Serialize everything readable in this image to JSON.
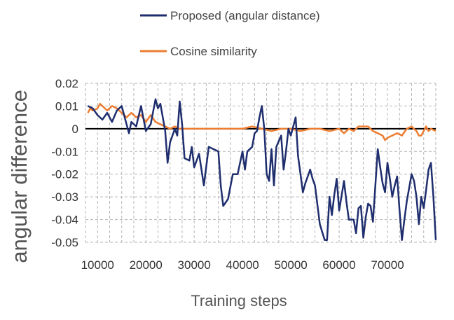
{
  "chart_data": {
    "type": "line",
    "xlabel": "Training steps",
    "ylabel": "angular difference",
    "xlim": [
      7500,
      80000
    ],
    "ylim": [
      -0.05,
      0.02
    ],
    "x_ticks": [
      10000,
      20000,
      30000,
      40000,
      50000,
      60000,
      70000
    ],
    "x_tick_labels": [
      "10000",
      "20000",
      "30000",
      "40000",
      "50000",
      "60000",
      "70000"
    ],
    "y_ticks": [
      0.02,
      0.01,
      0,
      -0.01,
      -0.02,
      -0.03,
      -0.04,
      -0.05
    ],
    "y_tick_labels": [
      "0.02",
      "0.01",
      "0",
      "-0.01",
      "-0.02",
      "-0.03",
      "-0.04",
      "-0.05"
    ],
    "grid": "dashed, both axes",
    "zero_line": true,
    "legend_position": "top-center",
    "series": [
      {
        "name": "Proposed (angular distance)",
        "color": "#1f2e6e",
        "points": [
          [
            8000,
            0.01
          ],
          [
            9000,
            0.009
          ],
          [
            10000,
            0.006
          ],
          [
            11000,
            0.004
          ],
          [
            12000,
            0.007
          ],
          [
            13000,
            0.003
          ],
          [
            14000,
            0.008
          ],
          [
            15000,
            0.01
          ],
          [
            16000,
            0.002
          ],
          [
            16500,
            -0.002
          ],
          [
            17000,
            0.003
          ],
          [
            18000,
            0.001
          ],
          [
            19000,
            0.01
          ],
          [
            20000,
            -0.001
          ],
          [
            21000,
            0.002
          ],
          [
            22000,
            0.013
          ],
          [
            22500,
            0.009
          ],
          [
            23000,
            0.011
          ],
          [
            24000,
            -0.001
          ],
          [
            24500,
            -0.015
          ],
          [
            25000,
            -0.006
          ],
          [
            26000,
            0.0
          ],
          [
            26500,
            -0.003
          ],
          [
            27000,
            0.012
          ],
          [
            27500,
            0.002
          ],
          [
            28000,
            -0.013
          ],
          [
            29000,
            -0.014
          ],
          [
            29500,
            -0.008
          ],
          [
            30000,
            -0.017
          ],
          [
            31000,
            -0.011
          ],
          [
            32000,
            -0.025
          ],
          [
            33000,
            -0.008
          ],
          [
            34000,
            -0.009
          ],
          [
            35000,
            -0.01
          ],
          [
            35500,
            -0.025
          ],
          [
            36000,
            -0.034
          ],
          [
            37000,
            -0.031
          ],
          [
            38000,
            -0.02
          ],
          [
            39000,
            -0.02
          ],
          [
            40000,
            -0.01
          ],
          [
            40500,
            -0.018
          ],
          [
            41000,
            -0.01
          ],
          [
            42000,
            -0.008
          ],
          [
            42500,
            -0.002
          ],
          [
            43000,
            -0.001
          ],
          [
            43500,
            0.005
          ],
          [
            44000,
            0.01
          ],
          [
            44500,
            0.0
          ],
          [
            45000,
            -0.02
          ],
          [
            45500,
            -0.023
          ],
          [
            46000,
            -0.009
          ],
          [
            46500,
            -0.025
          ],
          [
            47000,
            -0.008
          ],
          [
            48000,
            -0.003
          ],
          [
            48500,
            -0.018
          ],
          [
            49000,
            -0.01
          ],
          [
            49500,
            0.0
          ],
          [
            50000,
            -0.003
          ],
          [
            51000,
            0.005
          ],
          [
            51500,
            -0.012
          ],
          [
            52000,
            -0.02
          ],
          [
            52500,
            -0.028
          ],
          [
            53000,
            -0.024
          ],
          [
            54000,
            -0.018
          ],
          [
            54500,
            -0.022
          ],
          [
            55000,
            -0.025
          ],
          [
            56000,
            -0.042
          ],
          [
            57000,
            -0.049
          ],
          [
            57500,
            -0.049
          ],
          [
            58000,
            -0.03
          ],
          [
            58500,
            -0.038
          ],
          [
            59000,
            -0.029
          ],
          [
            59500,
            -0.022
          ],
          [
            60000,
            -0.036
          ],
          [
            61000,
            -0.023
          ],
          [
            61500,
            -0.032
          ],
          [
            62000,
            -0.04
          ],
          [
            63000,
            -0.04
          ],
          [
            63500,
            -0.046
          ],
          [
            64000,
            -0.035
          ],
          [
            64500,
            -0.034
          ],
          [
            65000,
            -0.048
          ],
          [
            65500,
            -0.039
          ],
          [
            66000,
            -0.033
          ],
          [
            66500,
            -0.034
          ],
          [
            67000,
            -0.041
          ],
          [
            68000,
            -0.009
          ],
          [
            68500,
            -0.017
          ],
          [
            69000,
            -0.024
          ],
          [
            69500,
            -0.028
          ],
          [
            70000,
            -0.015
          ],
          [
            70500,
            -0.022
          ],
          [
            71000,
            -0.03
          ],
          [
            71500,
            -0.025
          ],
          [
            72000,
            -0.021
          ],
          [
            72500,
            -0.036
          ],
          [
            73000,
            -0.049
          ],
          [
            73500,
            -0.04
          ],
          [
            74000,
            -0.032
          ],
          [
            75000,
            -0.02
          ],
          [
            75500,
            -0.023
          ],
          [
            76000,
            -0.03
          ],
          [
            76500,
            -0.042
          ],
          [
            77000,
            -0.03
          ],
          [
            77500,
            -0.035
          ],
          [
            78000,
            -0.027
          ],
          [
            78500,
            -0.018
          ],
          [
            79000,
            -0.015
          ],
          [
            79500,
            -0.03
          ],
          [
            80000,
            -0.049
          ]
        ]
      },
      {
        "name": "Cosine similarity",
        "color": "#ed7d31",
        "points": [
          [
            8000,
            0.007
          ],
          [
            8500,
            0.009
          ],
          [
            9000,
            0.008
          ],
          [
            10000,
            0.009
          ],
          [
            10500,
            0.011
          ],
          [
            11000,
            0.01
          ],
          [
            12000,
            0.008
          ],
          [
            13000,
            0.01
          ],
          [
            14000,
            0.009
          ],
          [
            15000,
            0.007
          ],
          [
            16000,
            0.005
          ],
          [
            17000,
            0.007
          ],
          [
            18000,
            0.005
          ],
          [
            19000,
            0.006
          ],
          [
            20000,
            0.003
          ],
          [
            21000,
            0.006
          ],
          [
            22000,
            0.003
          ],
          [
            23000,
            0.002
          ],
          [
            24000,
            0.001
          ],
          [
            25000,
            0.0
          ],
          [
            26000,
            0.001
          ],
          [
            27000,
            0.0
          ],
          [
            30000,
            0.0
          ],
          [
            35000,
            0.0
          ],
          [
            40000,
            0.0
          ],
          [
            42000,
            0.001
          ],
          [
            44000,
            0.0
          ],
          [
            46000,
            -0.001
          ],
          [
            48000,
            0.0
          ],
          [
            50000,
            0.0
          ],
          [
            52000,
            -0.001
          ],
          [
            54000,
            0.0
          ],
          [
            56000,
            0.0
          ],
          [
            58000,
            -0.001
          ],
          [
            60000,
            0.0
          ],
          [
            61000,
            -0.002
          ],
          [
            62000,
            0.0
          ],
          [
            63000,
            -0.001
          ],
          [
            64000,
            0.001
          ],
          [
            65000,
            0.001
          ],
          [
            66000,
            0.001
          ],
          [
            66500,
            0.0
          ],
          [
            67000,
            -0.001
          ],
          [
            68000,
            -0.002
          ],
          [
            69000,
            -0.003
          ],
          [
            69500,
            -0.005
          ],
          [
            70000,
            -0.004
          ],
          [
            71000,
            -0.003
          ],
          [
            72000,
            -0.002
          ],
          [
            73000,
            -0.003
          ],
          [
            74000,
            0.0
          ],
          [
            75000,
            0.001
          ],
          [
            76000,
            -0.001
          ],
          [
            76500,
            -0.003
          ],
          [
            77000,
            -0.003
          ],
          [
            78000,
            0.001
          ],
          [
            78500,
            -0.001
          ],
          [
            79000,
            0.0
          ],
          [
            80000,
            -0.001
          ]
        ]
      }
    ]
  }
}
